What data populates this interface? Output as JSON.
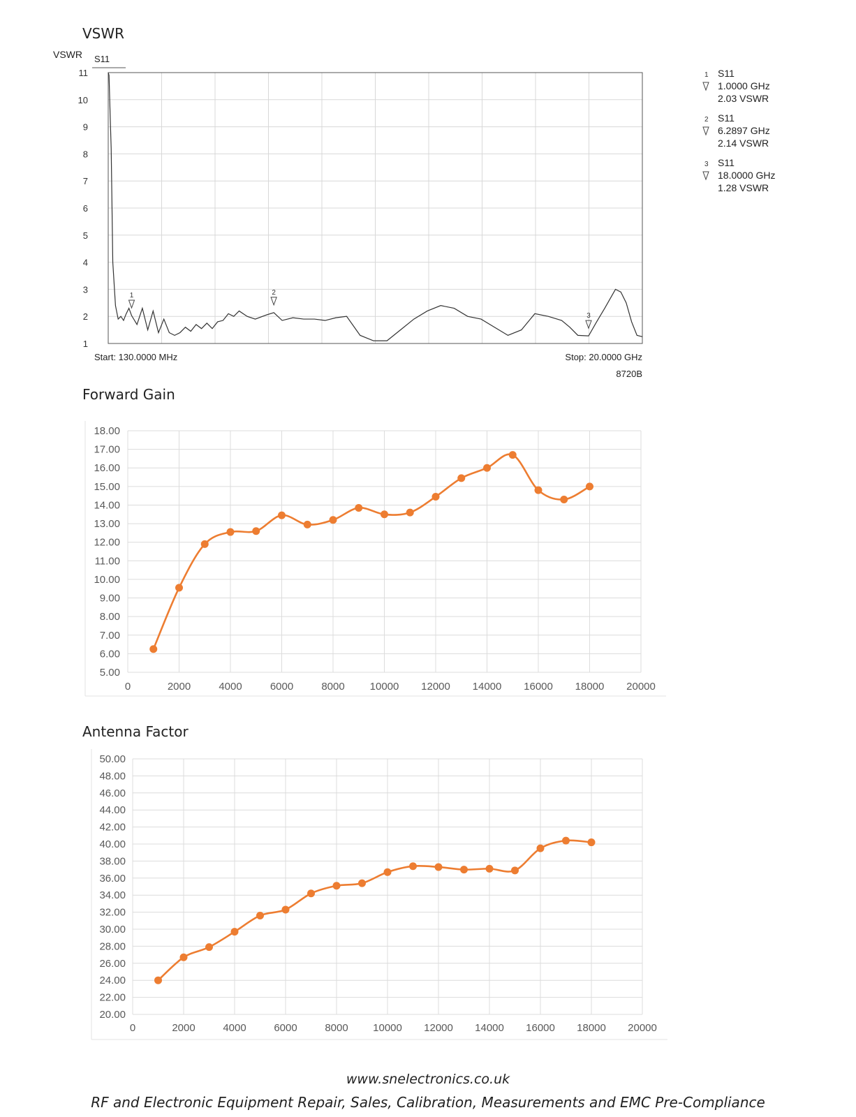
{
  "chart_data": [
    {
      "type": "line",
      "title": "VSWR",
      "ylabel": "VSWR",
      "trace_label": "S11",
      "ylim": [
        1,
        11
      ],
      "yticks": [
        "11",
        "10",
        "9",
        "8",
        "7",
        "6",
        "5",
        "4",
        "3",
        "2",
        "1"
      ],
      "start_label": "Start: 130.0000 MHz",
      "stop_label": "Stop: 20.0000 GHz",
      "instrument": "8720B",
      "xlim_ghz": [
        0.13,
        20.0
      ],
      "grid": true,
      "series": [
        {
          "x": [
            0.13,
            0.16,
            0.2,
            0.24,
            0.3,
            0.4,
            0.5,
            0.6,
            0.7,
            0.8,
            0.9,
            1.0,
            1.2,
            1.4,
            1.6,
            1.8,
            2.0,
            2.2,
            2.4,
            2.6,
            2.8,
            3.0,
            3.2,
            3.4,
            3.6,
            3.8,
            4.0,
            4.2,
            4.4,
            4.6,
            4.8,
            5.0,
            5.3,
            5.6,
            6.0,
            6.29,
            6.6,
            7.0,
            7.4,
            7.8,
            8.2,
            8.6,
            9.0,
            9.5,
            10.0,
            10.5,
            11.0,
            11.5,
            12.0,
            12.5,
            13.0,
            13.5,
            14.0,
            14.5,
            15.0,
            15.5,
            16.0,
            16.5,
            17.0,
            17.3,
            17.6,
            18.0,
            18.3,
            18.6,
            19.0,
            19.2,
            19.4,
            19.6,
            19.8,
            20.0
          ],
          "y": [
            11.0,
            10.9,
            9.5,
            8.2,
            4.0,
            2.4,
            1.9,
            2.0,
            1.85,
            2.1,
            2.3,
            2.03,
            1.7,
            2.3,
            1.5,
            2.2,
            1.4,
            1.9,
            1.4,
            1.3,
            1.4,
            1.6,
            1.45,
            1.7,
            1.55,
            1.75,
            1.55,
            1.8,
            1.85,
            2.1,
            2.0,
            2.2,
            2.0,
            1.9,
            2.05,
            2.14,
            1.85,
            1.95,
            1.9,
            1.9,
            1.85,
            1.95,
            2.0,
            1.3,
            1.1,
            1.1,
            1.5,
            1.9,
            2.2,
            2.4,
            2.3,
            2.0,
            1.9,
            1.6,
            1.3,
            1.5,
            2.1,
            2.0,
            1.85,
            1.6,
            1.3,
            1.28,
            1.8,
            2.3,
            3.0,
            2.9,
            2.5,
            1.8,
            1.3,
            1.25
          ]
        }
      ],
      "markers": [
        {
          "number": "1",
          "trace": "S11",
          "freq": "1.0000 GHz",
          "value": "2.03 VSWR",
          "x": 1.0,
          "y": 2.03
        },
        {
          "number": "2",
          "trace": "S11",
          "freq": "6.2897 GHz",
          "value": "2.14 VSWR",
          "x": 6.2897,
          "y": 2.14
        },
        {
          "number": "3",
          "trace": "S11",
          "freq": "18.0000 GHz",
          "value": "1.28 VSWR",
          "x": 18.0,
          "y": 1.28
        }
      ]
    },
    {
      "type": "line",
      "title": "Forward Gain",
      "xlim": [
        0,
        20000
      ],
      "ylim": [
        5,
        18
      ],
      "xticks": [
        0,
        2000,
        4000,
        6000,
        8000,
        10000,
        12000,
        14000,
        16000,
        18000,
        20000
      ],
      "yticks": [
        "18.00",
        "17.00",
        "16.00",
        "15.00",
        "14.00",
        "13.00",
        "12.00",
        "11.00",
        "10.00",
        "9.00",
        "8.00",
        "7.00",
        "6.00",
        "5.00"
      ],
      "grid": true,
      "color": "#ED7D31",
      "series": [
        {
          "x": [
            1000,
            2000,
            3000,
            4000,
            5000,
            6000,
            7000,
            8000,
            9000,
            10000,
            11000,
            12000,
            13000,
            14000,
            15000,
            16000,
            17000,
            18000
          ],
          "y": [
            6.25,
            9.55,
            11.9,
            12.55,
            12.6,
            13.45,
            12.95,
            13.2,
            13.85,
            13.5,
            13.6,
            14.45,
            15.45,
            16.0,
            16.7,
            14.8,
            14.3,
            15.0
          ]
        }
      ]
    },
    {
      "type": "line",
      "title": "Antenna Factor",
      "xlim": [
        0,
        20000
      ],
      "ylim": [
        20,
        50
      ],
      "xticks": [
        0,
        2000,
        4000,
        6000,
        8000,
        10000,
        12000,
        14000,
        16000,
        18000,
        20000
      ],
      "yticks": [
        "50.00",
        "48.00",
        "46.00",
        "44.00",
        "42.00",
        "40.00",
        "38.00",
        "36.00",
        "34.00",
        "32.00",
        "30.00",
        "28.00",
        "26.00",
        "24.00",
        "22.00",
        "20.00"
      ],
      "grid": true,
      "color": "#ED7D31",
      "series": [
        {
          "x": [
            1000,
            2000,
            3000,
            4000,
            5000,
            6000,
            7000,
            8000,
            9000,
            10000,
            11000,
            12000,
            13000,
            14000,
            15000,
            16000,
            17000,
            18000
          ],
          "y": [
            24.0,
            26.7,
            27.9,
            29.7,
            31.6,
            32.3,
            34.2,
            35.1,
            35.4,
            36.7,
            37.4,
            37.3,
            37.0,
            37.1,
            36.9,
            39.5,
            40.4,
            40.2
          ]
        }
      ]
    }
  ],
  "footer": {
    "url": "www.snelectronics.co.uk",
    "tagline": "RF and Electronic Equipment Repair, Sales, Calibration, Measurements and EMC Pre-Compliance"
  }
}
